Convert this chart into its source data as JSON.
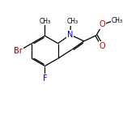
{
  "background_color": "#ffffff",
  "bond_color": "#000000",
  "atom_colors": {
    "Br": "#8b0000",
    "F": "#0000cc",
    "N": "#0000cc",
    "O": "#cc0000",
    "C": "#000000"
  },
  "font_size": 6.5,
  "bond_width": 0.9,
  "figsize": [
    1.52,
    1.52
  ],
  "dpi": 100,
  "xlim": [
    0,
    10
  ],
  "ylim": [
    0,
    10
  ]
}
